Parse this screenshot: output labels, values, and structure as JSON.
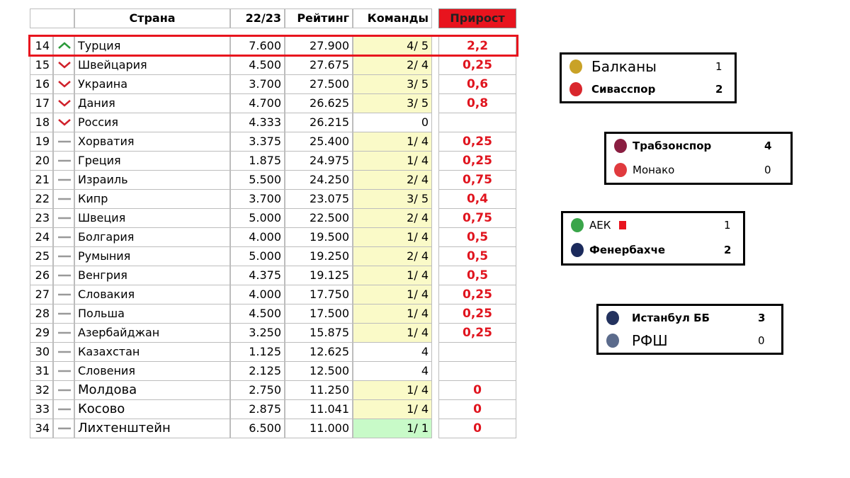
{
  "table": {
    "header": [
      "Страна",
      "22/23",
      "Рейтинг",
      "Команды",
      "Прирост"
    ],
    "highlight_row": 0,
    "rows": [
      {
        "rank": 14,
        "trend": "up",
        "country": "Турция",
        "season": "7.600",
        "rating": "27.900",
        "teams": "4/ 5",
        "teams_bg": "#fafac8",
        "growth": "2,2"
      },
      {
        "rank": 15,
        "trend": "down",
        "country": "Швейцария",
        "season": "4.500",
        "rating": "27.675",
        "teams": "2/ 4",
        "teams_bg": "#fafac8",
        "growth": "0,25"
      },
      {
        "rank": 16,
        "trend": "down",
        "country": "Украина",
        "season": "3.700",
        "rating": "27.500",
        "teams": "3/ 5",
        "teams_bg": "#fafac8",
        "growth": "0,6"
      },
      {
        "rank": 17,
        "trend": "down",
        "country": "Дания",
        "season": "4.700",
        "rating": "26.625",
        "teams": "3/ 5",
        "teams_bg": "#fafac8",
        "growth": "0,8"
      },
      {
        "rank": 18,
        "trend": "down",
        "country": "Россия",
        "season": "4.333",
        "rating": "26.215",
        "teams": "0",
        "teams_bg": "#ffffff",
        "growth": null
      },
      {
        "rank": 19,
        "trend": "flat",
        "country": "Хорватия",
        "season": "3.375",
        "rating": "25.400",
        "teams": "1/ 4",
        "teams_bg": "#fafac8",
        "growth": "0,25"
      },
      {
        "rank": 20,
        "trend": "flat",
        "country": "Греция",
        "season": "1.875",
        "rating": "24.975",
        "teams": "1/ 4",
        "teams_bg": "#fafac8",
        "growth": "0,25"
      },
      {
        "rank": 21,
        "trend": "flat",
        "country": "Израиль",
        "season": "5.500",
        "rating": "24.250",
        "teams": "2/ 4",
        "teams_bg": "#fafac8",
        "growth": "0,75"
      },
      {
        "rank": 22,
        "trend": "flat",
        "country": "Кипр",
        "season": "3.700",
        "rating": "23.075",
        "teams": "3/ 5",
        "teams_bg": "#fafac8",
        "growth": "0,4"
      },
      {
        "rank": 23,
        "trend": "flat",
        "country": "Швеция",
        "season": "5.000",
        "rating": "22.500",
        "teams": "2/ 4",
        "teams_bg": "#fafac8",
        "growth": "0,75"
      },
      {
        "rank": 24,
        "trend": "flat",
        "country": "Болгария",
        "season": "4.000",
        "rating": "19.500",
        "teams": "1/ 4",
        "teams_bg": "#fafac8",
        "growth": "0,5"
      },
      {
        "rank": 25,
        "trend": "flat",
        "country": "Румыния",
        "season": "5.000",
        "rating": "19.250",
        "teams": "2/ 4",
        "teams_bg": "#fafac8",
        "growth": "0,5"
      },
      {
        "rank": 26,
        "trend": "flat",
        "country": "Венгрия",
        "season": "4.375",
        "rating": "19.125",
        "teams": "1/ 4",
        "teams_bg": "#fafac8",
        "growth": "0,5"
      },
      {
        "rank": 27,
        "trend": "flat",
        "country": "Словакия",
        "season": "4.000",
        "rating": "17.750",
        "teams": "1/ 4",
        "teams_bg": "#fafac8",
        "growth": "0,25"
      },
      {
        "rank": 28,
        "trend": "flat",
        "country": "Польша",
        "season": "4.500",
        "rating": "17.500",
        "teams": "1/ 4",
        "teams_bg": "#fafac8",
        "growth": "0,25"
      },
      {
        "rank": 29,
        "trend": "flat",
        "country": "Азербайджан",
        "season": "3.250",
        "rating": "15.875",
        "teams": "1/ 4",
        "teams_bg": "#fafac8",
        "growth": "0,25"
      },
      {
        "rank": 30,
        "trend": "flat",
        "country": "Казахстан",
        "season": "1.125",
        "rating": "12.625",
        "teams": "4",
        "teams_bg": "#ffffff",
        "growth": null
      },
      {
        "rank": 31,
        "trend": "flat",
        "country": "Словения",
        "season": "2.125",
        "rating": "12.500",
        "teams": "4",
        "teams_bg": "#ffffff",
        "growth": null
      },
      {
        "rank": 32,
        "trend": "flat",
        "country": "Молдова",
        "season": "2.750",
        "rating": "11.250",
        "teams": "1/ 4",
        "teams_bg": "#fafac8",
        "growth": "0"
      },
      {
        "rank": 33,
        "trend": "flat",
        "country": "Косово",
        "season": "2.875",
        "rating": "11.041",
        "teams": "1/ 4",
        "teams_bg": "#fafac8",
        "growth": "0"
      },
      {
        "rank": 34,
        "trend": "flat",
        "country": "Лихтенштейн",
        "season": "6.500",
        "rating": "11.000",
        "teams": "1/ 1",
        "teams_bg": "#c8fac8",
        "growth": "0"
      }
    ]
  },
  "matches": [
    {
      "teams": [
        {
          "name": "Балканы",
          "score": 1,
          "logo": "#c9a227"
        },
        {
          "name": "Сивасспор",
          "score": 2,
          "logo": "#d9262c"
        }
      ],
      "winner": 1
    },
    {
      "teams": [
        {
          "name": "Трабзонспор",
          "score": 4,
          "logo": "#8a1e41"
        },
        {
          "name": "Монако",
          "score": 0,
          "logo": "#e03a3e"
        }
      ],
      "winner": 0
    },
    {
      "teams": [
        {
          "name": "АЕК",
          "score": 1,
          "logo": "#3aa54a"
        },
        {
          "name": "Фенербахче",
          "score": 2,
          "logo": "#1b2a5c"
        }
      ],
      "winner": 1
    },
    {
      "teams": [
        {
          "name": "Истанбул ББ",
          "score": 3,
          "logo": "#23325e"
        },
        {
          "name": "РФШ",
          "score": 0,
          "logo": "#5b6b8c"
        }
      ],
      "winner": 0
    }
  ]
}
